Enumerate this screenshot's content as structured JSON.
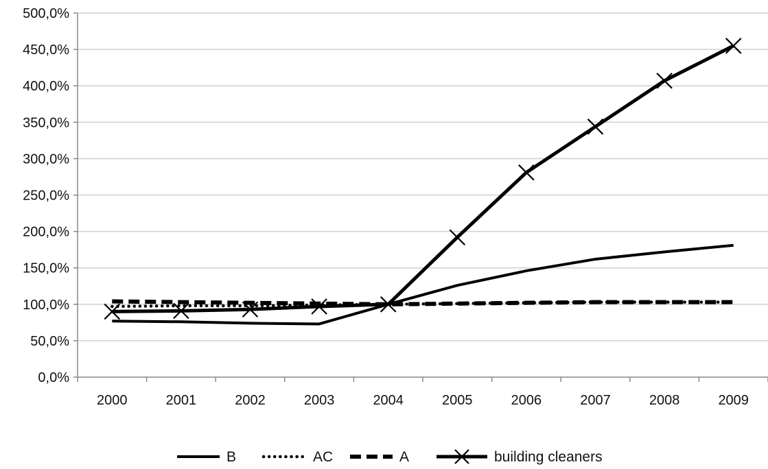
{
  "chart_data": {
    "type": "line",
    "categories": [
      "2000",
      "2001",
      "2002",
      "2003",
      "2004",
      "2005",
      "2006",
      "2007",
      "2008",
      "2009"
    ],
    "y_ticks": [
      "0,0%",
      "50,0%",
      "100,0%",
      "150,0%",
      "200,0%",
      "250,0%",
      "300,0%",
      "350,0%",
      "400,0%",
      "450,0%",
      "500,0%"
    ],
    "ylim": [
      0,
      500
    ],
    "grid": "horizontal",
    "legend_position": "bottom",
    "series": [
      {
        "name": "B",
        "style": "solid",
        "color": "#000000",
        "values": [
          77,
          76,
          74,
          73,
          100,
          126,
          146,
          162,
          172,
          181
        ]
      },
      {
        "name": "AC",
        "style": "dotted",
        "color": "#000000",
        "values": [
          97,
          98,
          98,
          99,
          100,
          101,
          102,
          103,
          103,
          103
        ]
      },
      {
        "name": "A",
        "style": "dashed",
        "color": "#000000",
        "values": [
          104,
          103,
          102,
          101,
          100,
          101,
          102,
          103,
          103,
          103
        ]
      },
      {
        "name": "building cleaners",
        "style": "solid-cross",
        "color": "#000000",
        "values": [
          90,
          91,
          93,
          97,
          100,
          192,
          281,
          344,
          407,
          455
        ]
      }
    ]
  }
}
